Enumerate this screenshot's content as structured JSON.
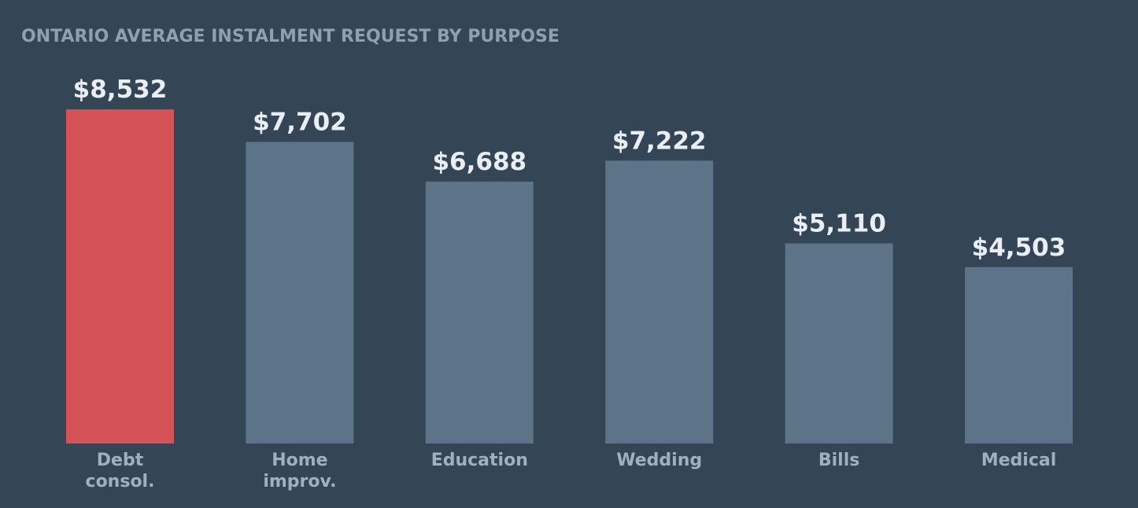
{
  "chart_data": {
    "type": "bar",
    "title": "ONTARIO AVERAGE INSTALMENT REQUEST BY PURPOSE",
    "categories": [
      "Debt\nconsol.",
      "Home\nimprov.",
      "Education",
      "Wedding",
      "Bills",
      "Medical"
    ],
    "values": [
      8532,
      7702,
      6688,
      7222,
      5110,
      4503
    ],
    "value_labels": [
      "$8,532",
      "$7,702",
      "$6,688",
      "$7,222",
      "$5,110",
      "$4,503"
    ],
    "colors": [
      "#d55257",
      "#5d7387",
      "#5d7387",
      "#5d7387",
      "#5d7387",
      "#5d7387"
    ]
  }
}
